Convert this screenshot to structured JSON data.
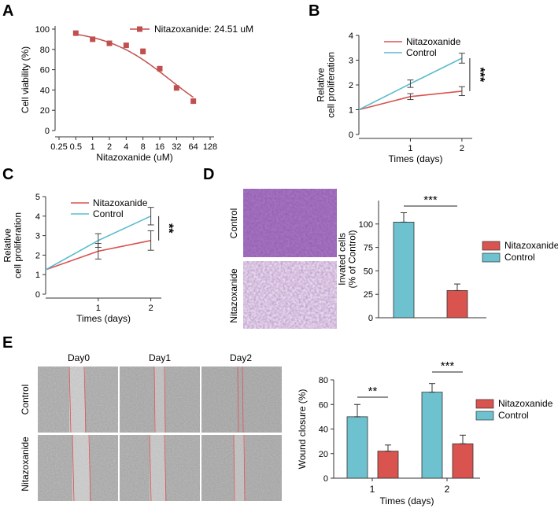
{
  "colors": {
    "red": "#d9534f",
    "red_dark": "#c0504d",
    "teal": "#6ec1cf",
    "cyan_line": "#5bbccd",
    "axis": "#333333",
    "stain": "#6a2f8a",
    "stain_light": "#b593c6"
  },
  "panel_labels": {
    "a": "A",
    "b": "B",
    "c": "C",
    "d": "D",
    "e": "E"
  },
  "image_labels": {
    "d_row_control": "Control",
    "d_row_nitazoxanide": "Nitazoxanide",
    "e_col_day0": "Day0",
    "e_col_day1": "Day1",
    "e_col_day2": "Day2",
    "e_row_control": "Control",
    "e_row_nitazoxanide": "Nitazoxanide"
  },
  "chart_data": [
    {
      "panel": "A",
      "type": "scatter",
      "title": "",
      "legend": "Nitazoxanide: 24.51 uM",
      "legend_position": "top-right",
      "xlabel": "Nitazoxanide (uM)",
      "ylabel": "Cell viability (%)",
      "xscale": "log2",
      "x_ticks": [
        "0.25",
        "0.5",
        "1",
        "2",
        "4",
        "8",
        "16",
        "32",
        "64",
        "128"
      ],
      "x_tick_values": [
        0.25,
        0.5,
        1,
        2,
        4,
        8,
        16,
        32,
        64,
        128
      ],
      "y_ticks": [
        "0",
        "20",
        "40",
        "60",
        "80",
        "100"
      ],
      "ylim": [
        0,
        100
      ],
      "x": [
        0.5,
        1,
        2,
        4,
        8,
        16,
        32,
        64
      ],
      "y": [
        96,
        90,
        86,
        84,
        78,
        61,
        42,
        29
      ],
      "y_err": [
        1,
        1.5,
        1.5,
        1.5,
        2.5,
        1.5,
        1.5,
        2
      ],
      "fit": {
        "top": 100,
        "bottom": 0,
        "ic50": 24.51,
        "hill": 0.75
      }
    },
    {
      "panel": "B",
      "type": "line",
      "xlabel": "Times (days)",
      "ylabel": [
        "Relative",
        "cell proliferation"
      ],
      "categories": [
        "1",
        "2"
      ],
      "x": [
        0,
        1,
        2
      ],
      "xlim": [
        0,
        2.2
      ],
      "ylim": [
        0,
        4
      ],
      "y_ticks": [
        "0",
        "1",
        "2",
        "3",
        "4"
      ],
      "series": [
        {
          "name": "Nitazoxanide",
          "values": [
            1,
            1.53,
            1.75
          ],
          "err": [
            0,
            0.12,
            0.18
          ],
          "color": "#d9534f"
        },
        {
          "name": "Control",
          "values": [
            1,
            2.05,
            3.08
          ],
          "err": [
            0,
            0.15,
            0.2
          ],
          "color": "#5bbccd"
        }
      ],
      "significance": "***",
      "legend_position": "top-left"
    },
    {
      "panel": "C",
      "type": "line",
      "xlabel": "Times (days)",
      "ylabel": [
        "Relative",
        "cell proliferation"
      ],
      "categories": [
        "1",
        "2"
      ],
      "x": [
        0,
        1,
        2
      ],
      "xlim": [
        0,
        2.2
      ],
      "ylim": [
        0,
        5
      ],
      "y_ticks": [
        "0",
        "1",
        "2",
        "3",
        "4",
        "5"
      ],
      "series": [
        {
          "name": "Nitazoxanide",
          "values": [
            1.25,
            2.2,
            2.75
          ],
          "err": [
            0,
            0.4,
            0.5
          ],
          "color": "#d9534f"
        },
        {
          "name": "Control",
          "values": [
            1.25,
            2.75,
            4.0
          ],
          "err": [
            0,
            0.35,
            0.45
          ],
          "color": "#5bbccd"
        }
      ],
      "significance": "**",
      "legend_position": "top-left"
    },
    {
      "panel": "D",
      "type": "bar",
      "xlabel": "",
      "ylabel": [
        "Invated cells",
        "(% of Control)"
      ],
      "categories": [
        "Control",
        "Nitazoxanide"
      ],
      "ylim": [
        0,
        125
      ],
      "y_ticks": [
        "0",
        "25",
        "50",
        "75",
        "100"
      ],
      "series": [
        {
          "name": "Nitazoxanide",
          "values": [
            null,
            29
          ],
          "err": [
            null,
            7
          ],
          "color": "#d9534f"
        },
        {
          "name": "Control",
          "values": [
            102,
            null
          ],
          "err": [
            10,
            null
          ],
          "color": "#6ec1cf"
        }
      ],
      "significance": [
        "***"
      ],
      "legend_position": "right"
    },
    {
      "panel": "E",
      "type": "bar",
      "xlabel": "Times (days)",
      "ylabel": "Wound closure (%)",
      "categories": [
        "1",
        "2"
      ],
      "ylim": [
        0,
        80
      ],
      "y_ticks": [
        "0",
        "20",
        "40",
        "60",
        "80"
      ],
      "series": [
        {
          "name": "Control",
          "values": [
            50,
            70
          ],
          "err": [
            10,
            7
          ],
          "color": "#6ec1cf"
        },
        {
          "name": "Nitazoxanide",
          "values": [
            22,
            28
          ],
          "err": [
            5,
            7
          ],
          "color": "#d9534f"
        }
      ],
      "legend_order": [
        "Nitazoxanide",
        "Control"
      ],
      "significance": [
        "**",
        "***"
      ],
      "legend_position": "right"
    }
  ]
}
